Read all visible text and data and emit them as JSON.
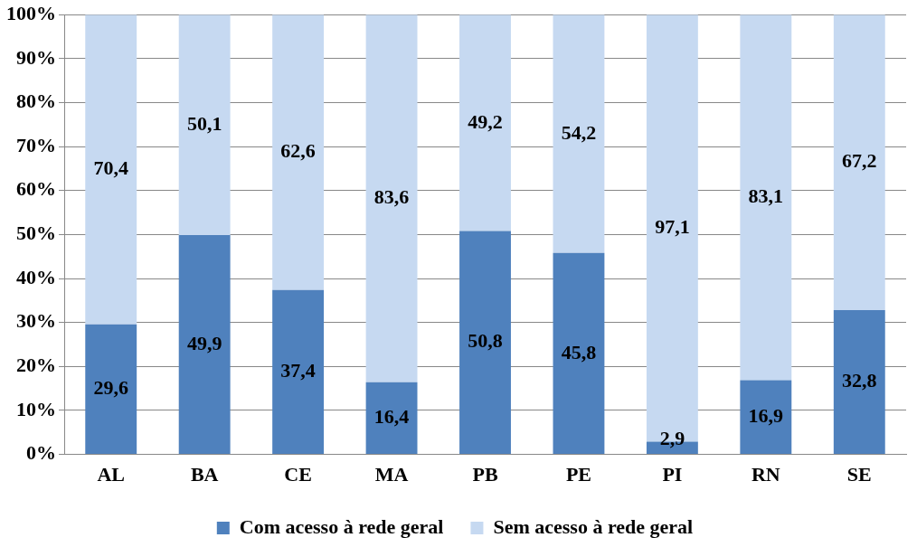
{
  "chart_data": {
    "type": "bar",
    "stacked": true,
    "categories": [
      "AL",
      "BA",
      "CE",
      "MA",
      "PB",
      "PE",
      "PI",
      "RN",
      "SE"
    ],
    "series": [
      {
        "name": "Com acesso à rede geral",
        "color": "#4f81bd",
        "values": [
          29.6,
          49.9,
          37.4,
          16.4,
          50.8,
          45.8,
          2.9,
          16.9,
          32.8
        ],
        "value_labels": [
          "29,6",
          "49,9",
          "37,4",
          "16,4",
          "50,8",
          "45,8",
          "2,9",
          "16,9",
          "32,8"
        ]
      },
      {
        "name": "Sem acesso à rede geral",
        "color": "#c6d9f1",
        "values": [
          70.4,
          50.1,
          62.6,
          83.6,
          49.2,
          54.2,
          97.1,
          83.1,
          67.2
        ],
        "value_labels": [
          "70,4",
          "50,1",
          "62,6",
          "83,6",
          "49,2",
          "54,2",
          "97,1",
          "83,1",
          "67,2"
        ]
      }
    ],
    "ylim": [
      0,
      100
    ],
    "yticks": [
      {
        "value": 0,
        "label": "0%"
      },
      {
        "value": 10,
        "label": "10%"
      },
      {
        "value": 20,
        "label": "20%"
      },
      {
        "value": 30,
        "label": "30%"
      },
      {
        "value": 40,
        "label": "40%"
      },
      {
        "value": 50,
        "label": "50%"
      },
      {
        "value": 60,
        "label": "60%"
      },
      {
        "value": 70,
        "label": "70%"
      },
      {
        "value": 80,
        "label": "80%"
      },
      {
        "value": 90,
        "label": "90%"
      },
      {
        "value": 100,
        "label": "100%"
      }
    ],
    "grid": "y",
    "legend": "bottom"
  }
}
